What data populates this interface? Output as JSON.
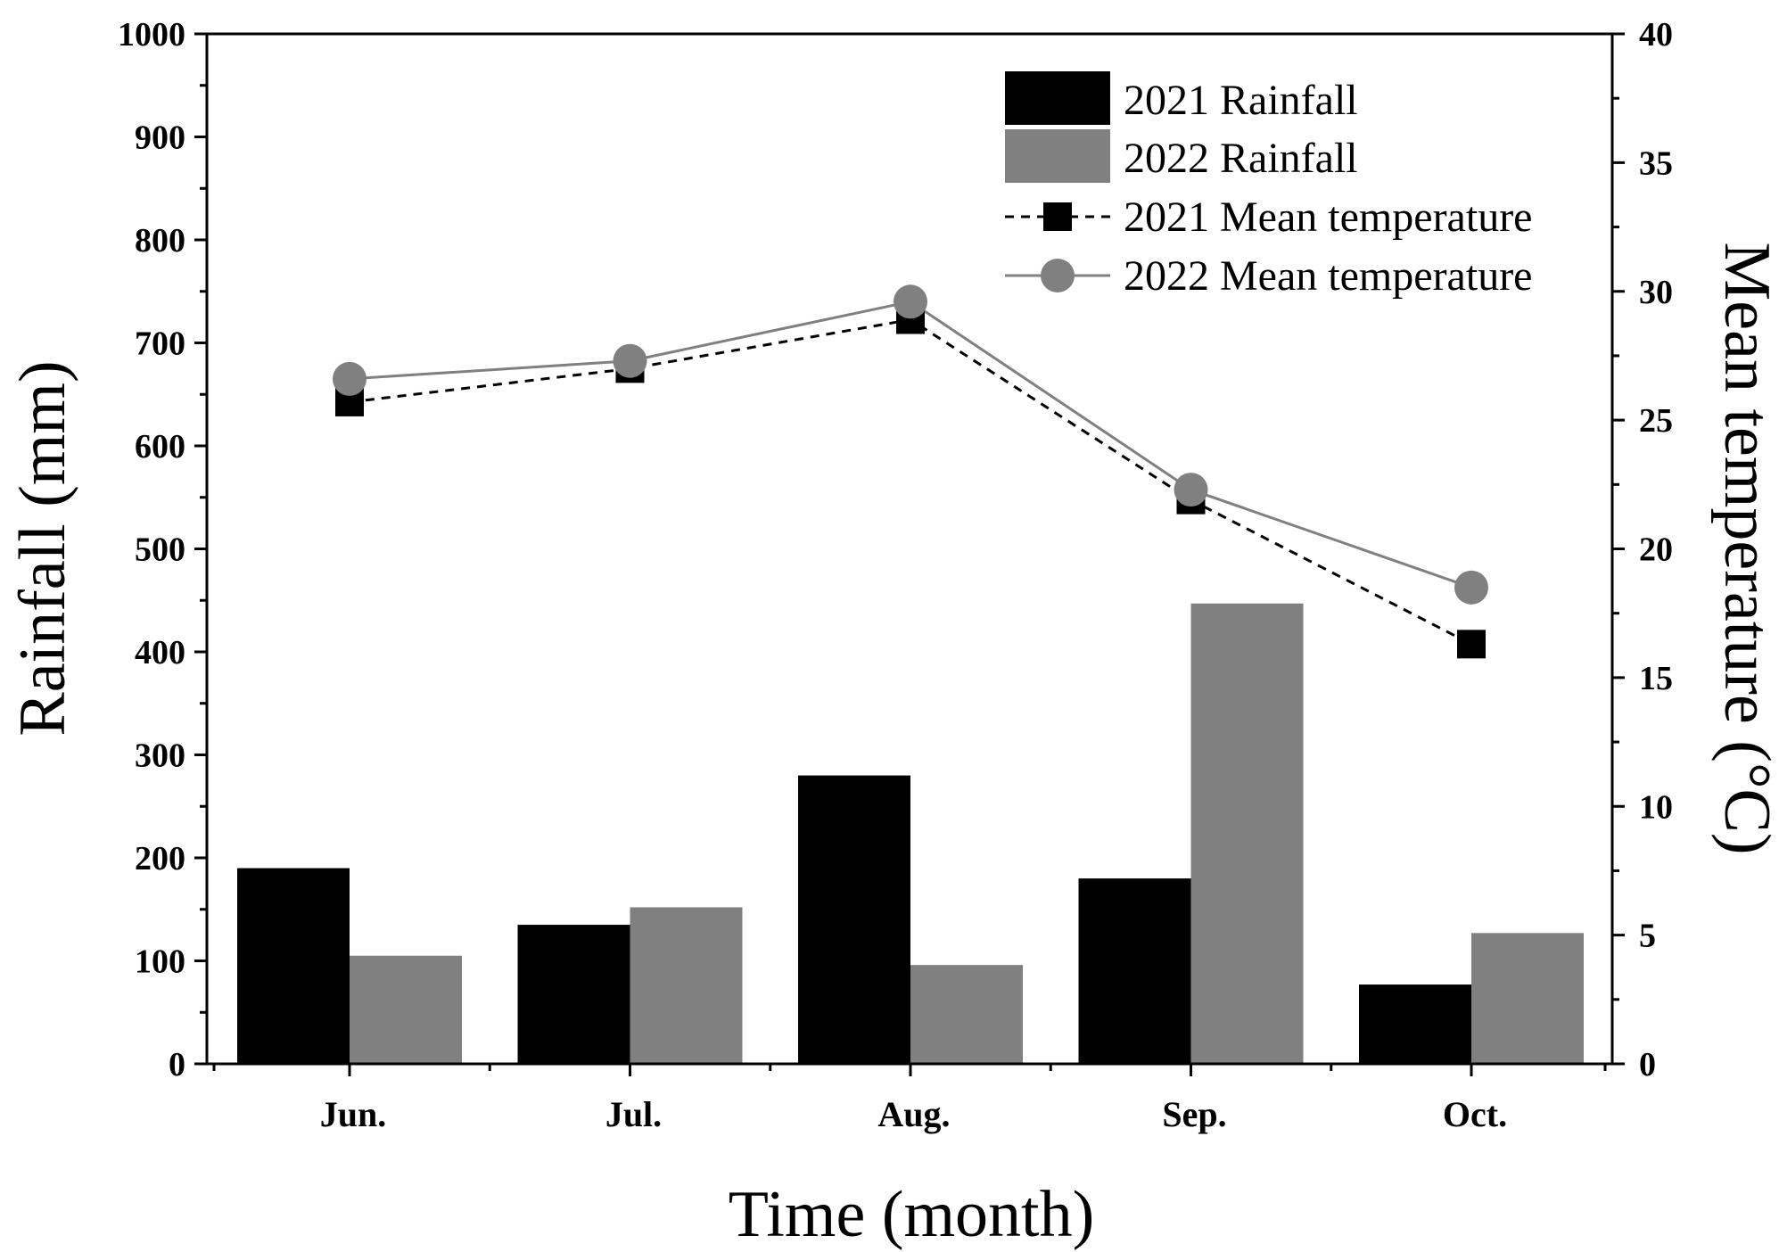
{
  "chart_data": {
    "type": "bar",
    "categories": [
      "Jun.",
      "Jul.",
      "Aug.",
      "Sep.",
      "Oct."
    ],
    "series": [
      {
        "name": "2021 Rainfall",
        "kind": "bar",
        "axis": "left",
        "color": "#000000",
        "values": [
          190,
          135,
          280,
          180,
          77
        ]
      },
      {
        "name": "2022 Rainfall",
        "kind": "bar",
        "axis": "left",
        "color": "#808080",
        "values": [
          105,
          152,
          96,
          447,
          127
        ]
      },
      {
        "name": "2021 Mean temperature",
        "kind": "line",
        "axis": "right",
        "color": "#000000",
        "line_style": "dashed",
        "marker": "square",
        "values": [
          25.7,
          27.0,
          28.9,
          21.9,
          16.3
        ]
      },
      {
        "name": "2022 Mean temperature",
        "kind": "line",
        "axis": "right",
        "color": "#808080",
        "line_style": "solid",
        "marker": "circle",
        "values": [
          26.6,
          27.3,
          29.6,
          22.3,
          18.5
        ]
      }
    ],
    "xlabel": "Time (month)",
    "ylabel": "Rainfall (mm)",
    "y2label": "Mean temperature (°C)",
    "ylim": [
      0,
      1000
    ],
    "y2lim": [
      0,
      40
    ],
    "yticks": [
      0,
      100,
      200,
      300,
      400,
      500,
      600,
      700,
      800,
      900,
      1000
    ],
    "y2ticks": [
      0,
      5,
      10,
      15,
      20,
      25,
      30,
      35,
      40
    ],
    "grid": false,
    "legend_position": "top-right"
  }
}
